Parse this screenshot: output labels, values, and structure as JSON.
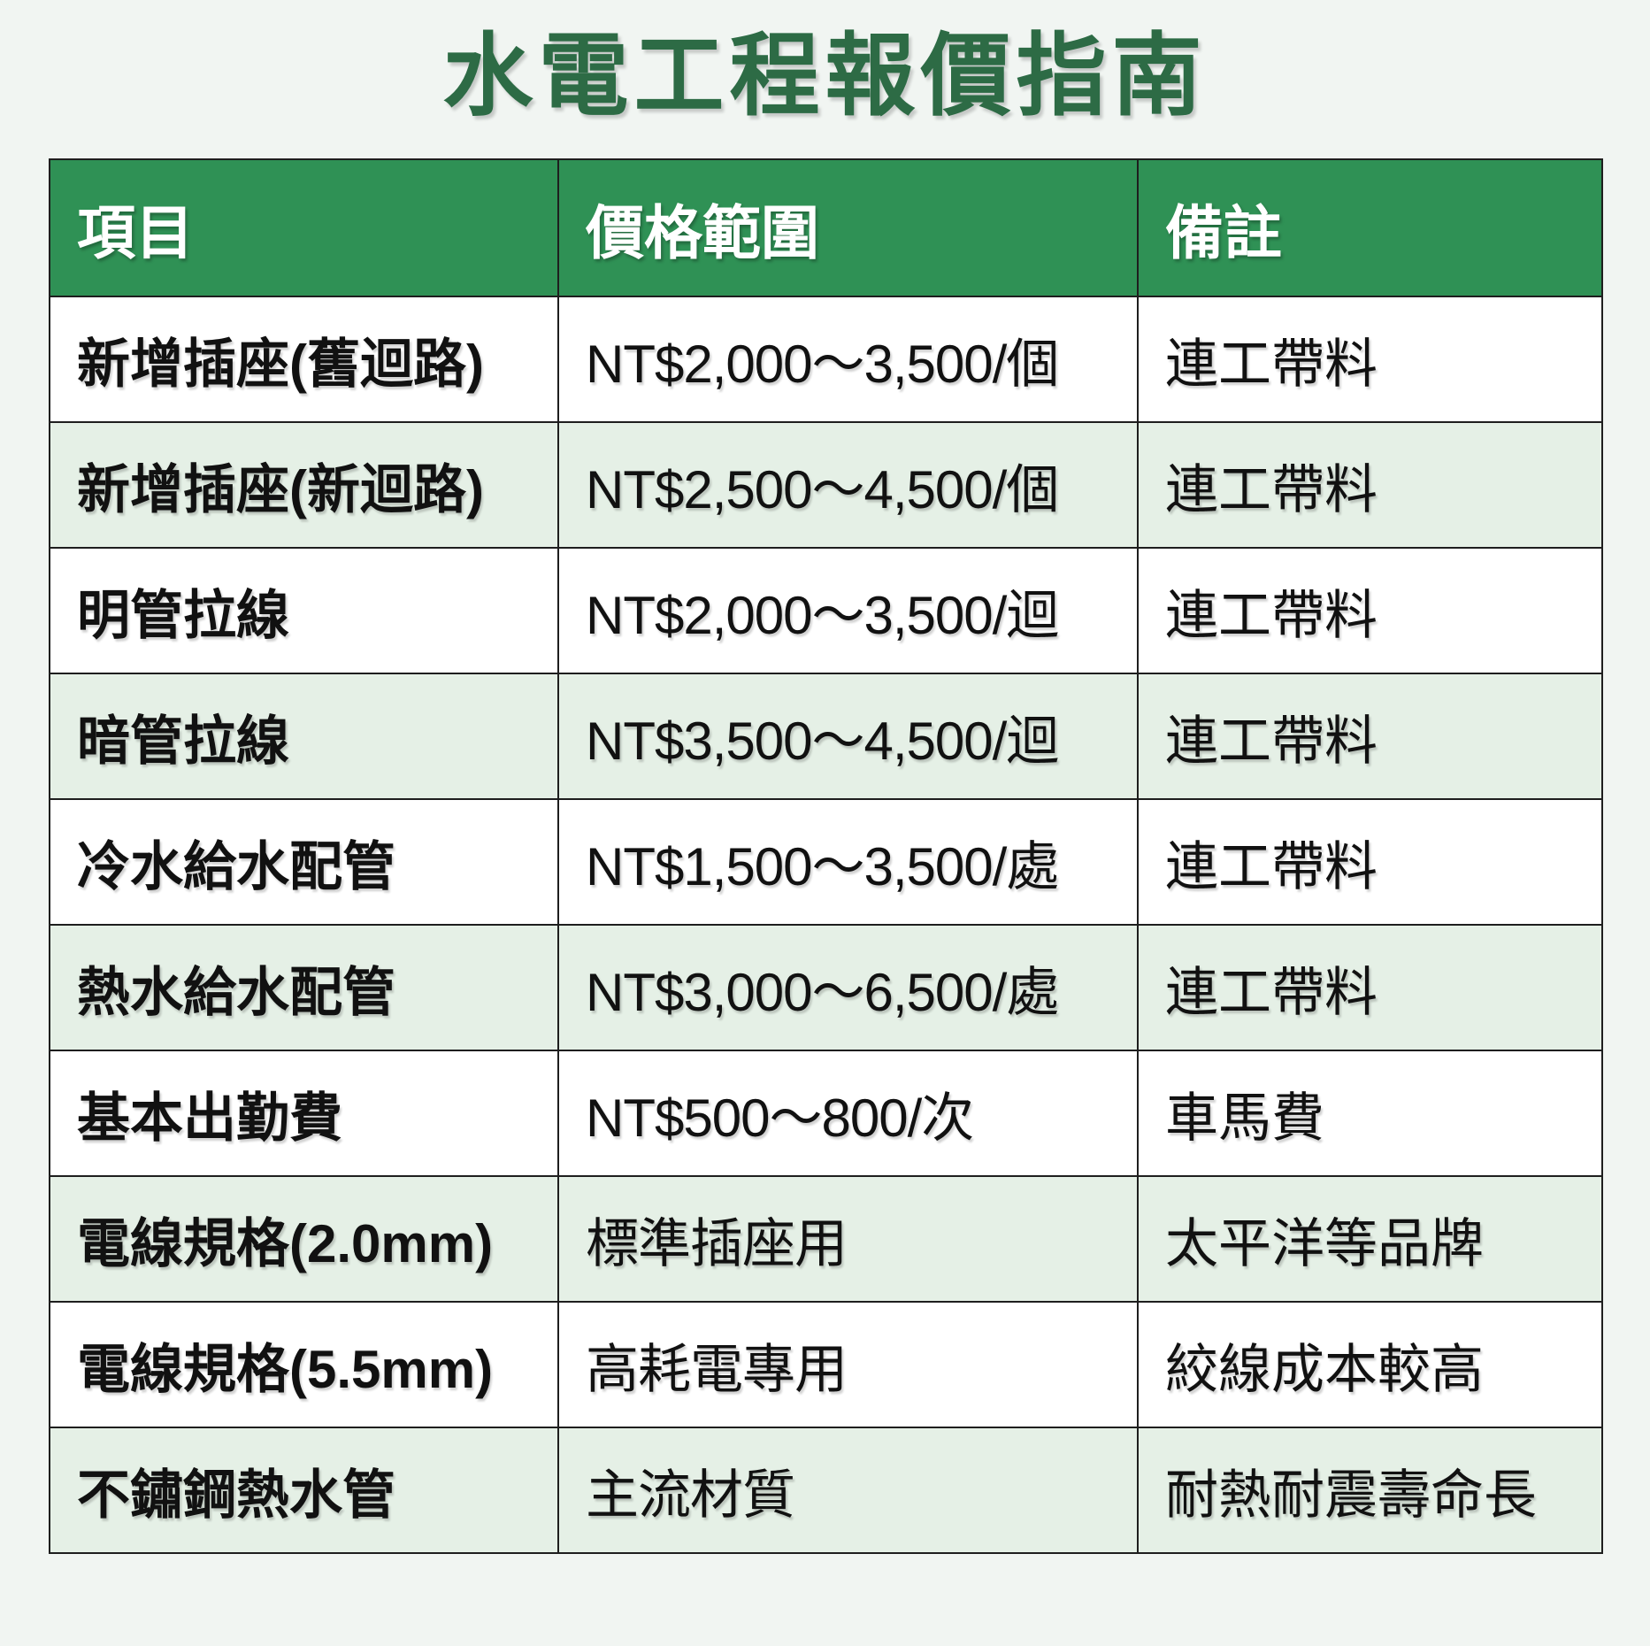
{
  "title": "水電工程報價指南",
  "colors": {
    "page_bg": "#f1f5f2",
    "title_green": "#2d6b45",
    "header_green": "#2f9155",
    "alt_row_green": "#e5f0e6",
    "border": "#1e1e1e"
  },
  "table": {
    "columns": [
      "項目",
      "價格範圍",
      "備註"
    ],
    "rows": [
      [
        "新增插座(舊迴路)",
        "NT$2,000〜3,500/個",
        "連工帶料"
      ],
      [
        "新增插座(新迴路)",
        "NT$2,500〜4,500/個",
        "連工帶料"
      ],
      [
        "明管拉線",
        "NT$2,000〜3,500/迴",
        "連工帶料"
      ],
      [
        "暗管拉線",
        "NT$3,500〜4,500/迴",
        "連工帶料"
      ],
      [
        "冷水給水配管",
        "NT$1,500〜3,500/處",
        "連工帶料"
      ],
      [
        "熱水給水配管",
        "NT$3,000〜6,500/處",
        "連工帶料"
      ],
      [
        "基本出勤費",
        "NT$500〜800/次",
        "車馬費"
      ],
      [
        "電線規格(2.0mm)",
        "標準插座用",
        "太平洋等品牌"
      ],
      [
        "電線規格(5.5mm)",
        "高耗電專用",
        "絞線成本較高"
      ],
      [
        "不鏽鋼熱水管",
        "主流材質",
        "耐熱耐震壽命長"
      ]
    ]
  }
}
